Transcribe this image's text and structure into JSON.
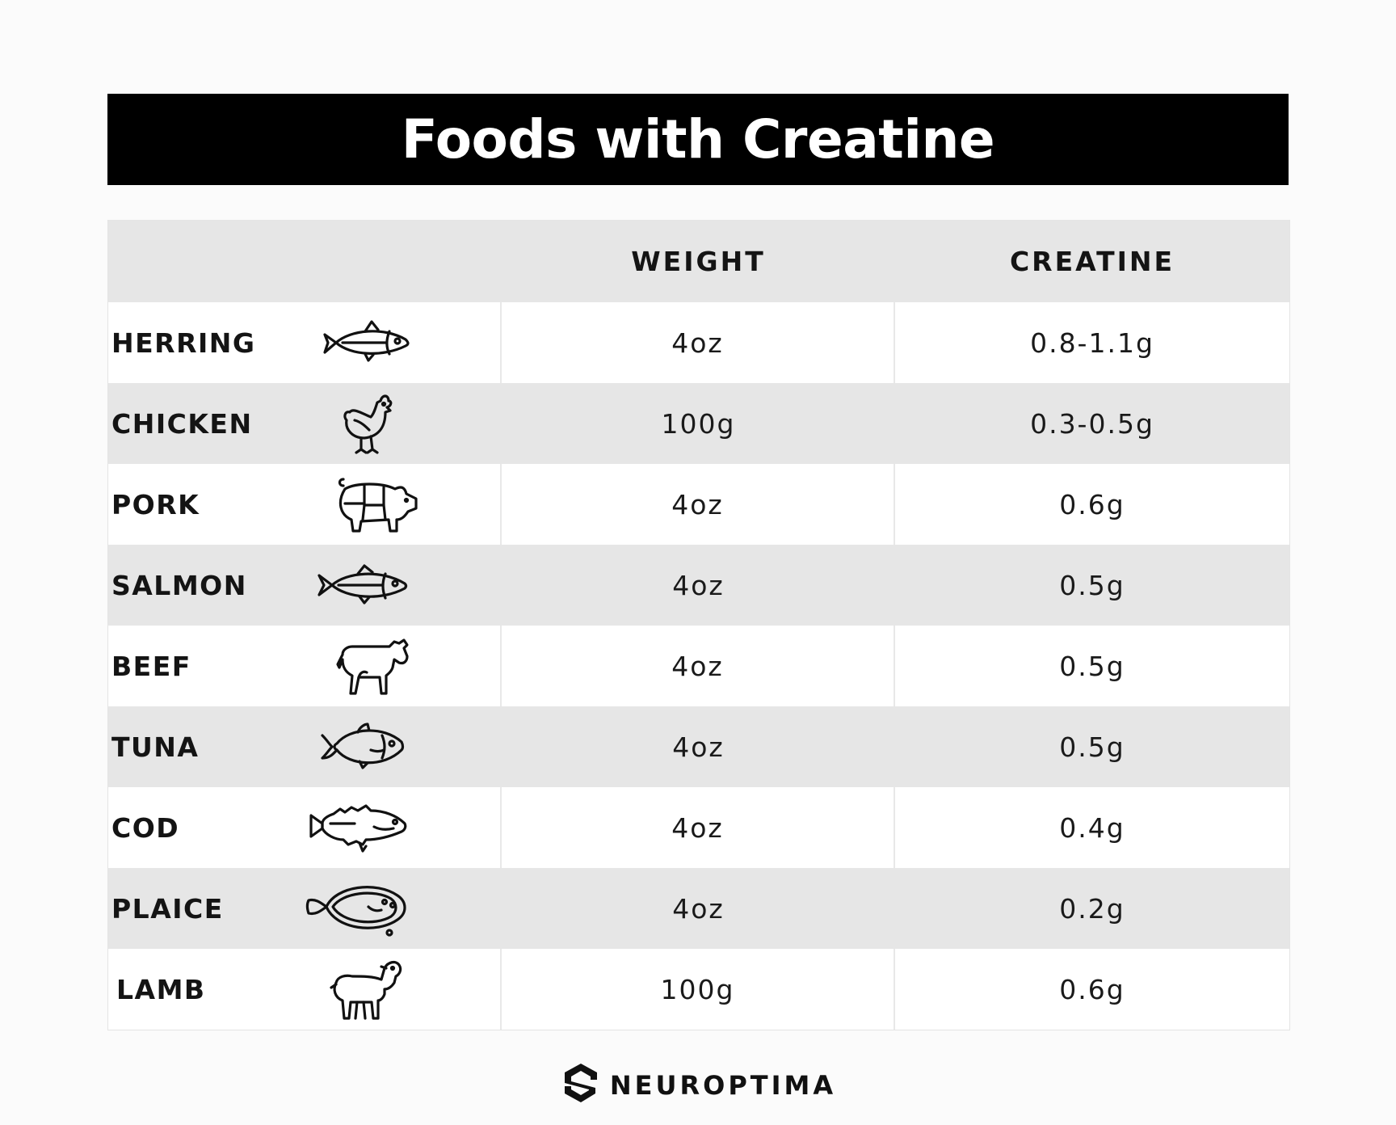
{
  "title": "Foods with Creatine",
  "table": {
    "headers": {
      "food": "",
      "weight": "WEIGHT",
      "creatine": "CREATINE"
    },
    "rows": [
      {
        "food": "HERRING",
        "icon": "herring-fish-icon",
        "weight": "4oz",
        "creatine": "0.8-1.1g"
      },
      {
        "food": "CHICKEN",
        "icon": "chicken-icon",
        "weight": "100g",
        "creatine": "0.3-0.5g"
      },
      {
        "food": "PORK",
        "icon": "pig-icon",
        "weight": "4oz",
        "creatine": "0.6g"
      },
      {
        "food": "SALMON",
        "icon": "salmon-fish-icon",
        "weight": "4oz",
        "creatine": "0.5g"
      },
      {
        "food": "BEEF",
        "icon": "cow-icon",
        "weight": "4oz",
        "creatine": "0.5g"
      },
      {
        "food": "TUNA",
        "icon": "tuna-fish-icon",
        "weight": "4oz",
        "creatine": "0.5g"
      },
      {
        "food": "COD",
        "icon": "cod-fish-icon",
        "weight": "4oz",
        "creatine": "0.4g"
      },
      {
        "food": "PLAICE",
        "icon": "plaice-flatfish-icon",
        "weight": "4oz",
        "creatine": "0.2g"
      },
      {
        "food": "LAMB",
        "icon": "lamb-icon",
        "weight": "100g",
        "creatine": "0.6g"
      }
    ]
  },
  "brand": {
    "name": "NEUROPTIMA",
    "logo_icon": "neuroptima-logo-icon"
  },
  "colors": {
    "title_bar": "#000000",
    "shaded_row": "#e6e6e6",
    "text": "#141414"
  }
}
